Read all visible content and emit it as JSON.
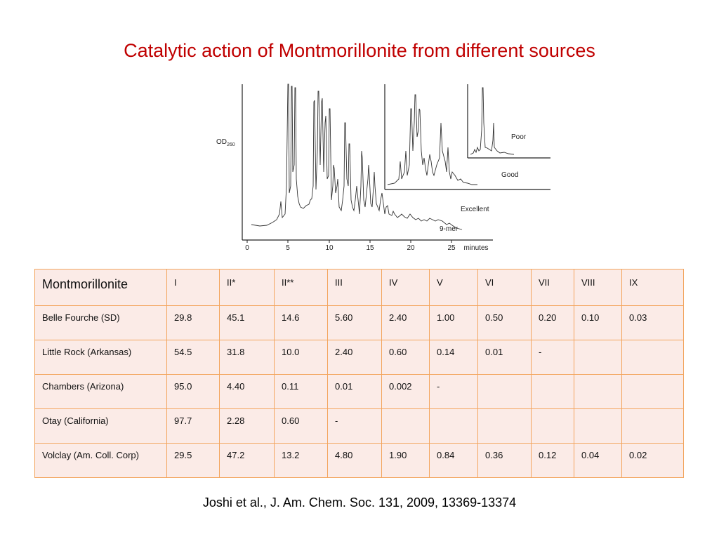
{
  "title": "Catalytic action of Montmorillonite from different sources",
  "figure": {
    "y_label_main": "OD",
    "y_label_sub": "260",
    "x_ticks": [
      "0",
      "5",
      "10",
      "15",
      "20",
      "25"
    ],
    "x_unit": "minutes",
    "panel_labels": [
      "Poor",
      "Good",
      "Excellent",
      "9-mer"
    ]
  },
  "table": {
    "header": [
      "Montmorillonite",
      "I",
      "II*",
      "II**",
      "III",
      "IV",
      "V",
      "VI",
      "VII",
      "VIII",
      "IX"
    ],
    "rows": [
      [
        "Belle Fourche (SD)",
        "29.8",
        "45.1",
        "14.6",
        "5.60",
        "2.40",
        "1.00",
        "0.50",
        "0.20",
        "0.10",
        "0.03"
      ],
      [
        "Little Rock (Arkansas)",
        "54.5",
        "31.8",
        "10.0",
        "2.40",
        "0.60",
        "0.14",
        "0.01",
        "-",
        "",
        ""
      ],
      [
        "Chambers (Arizona)",
        "95.0",
        "4.40",
        "0.11",
        "0.01",
        "0.002",
        "-",
        "",
        "",
        "",
        ""
      ],
      [
        "Otay (California)",
        "97.7",
        "2.28",
        "0.60",
        "-",
        "",
        "",
        "",
        "",
        "",
        ""
      ],
      [
        "Volclay (Am. Coll. Corp)",
        "29.5",
        "47.2",
        "13.2",
        "4.80",
        "1.90",
        "0.84",
        "0.36",
        "0.12",
        "0.04",
        "0.02"
      ]
    ]
  },
  "citation": "Joshi et al., J. Am. Chem. Soc. 131, 2009, 13369-13374"
}
